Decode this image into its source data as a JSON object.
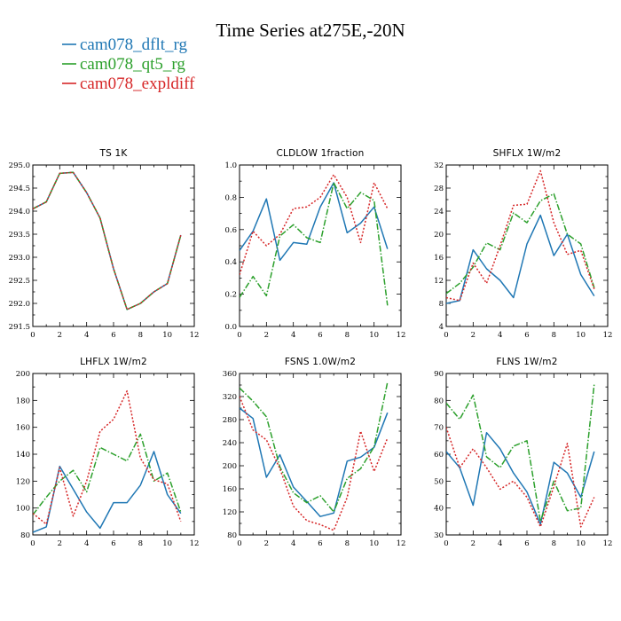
{
  "title": "Time Series at275E,-20N",
  "legend": [
    {
      "label": "cam078_dflt_rg",
      "color": "#1f77b4",
      "dash": "solid"
    },
    {
      "label": "cam078_qt5_rg",
      "color": "#2ca02c",
      "dash": "dashdot"
    },
    {
      "label": "cam078_expldiff",
      "color": "#d62728",
      "dash": "dotted"
    }
  ],
  "chart_data": [
    {
      "type": "line",
      "title": "TS   1K",
      "xlim": [
        0,
        12
      ],
      "xticks": [
        0,
        2,
        4,
        6,
        8,
        10,
        12
      ],
      "ylim": [
        291.5,
        295.0
      ],
      "yticks": [
        291.5,
        292.0,
        292.5,
        293.0,
        293.5,
        294.0,
        294.5,
        295.0
      ],
      "ytick_labels": [
        "291.5",
        "292.0",
        "292.5",
        "293.0",
        "293.5",
        "294.0",
        "294.5",
        "295.0"
      ],
      "x": [
        0,
        1,
        2,
        3,
        4,
        5,
        6,
        7,
        8,
        9,
        10,
        11
      ],
      "series": [
        {
          "name": "cam078_dflt_rg",
          "values": [
            294.05,
            294.2,
            294.82,
            294.84,
            294.4,
            293.85,
            292.75,
            291.87,
            292.0,
            292.25,
            292.43,
            293.48
          ]
        },
        {
          "name": "cam078_qt5_rg",
          "values": [
            294.05,
            294.2,
            294.82,
            294.84,
            294.4,
            293.85,
            292.75,
            291.87,
            292.0,
            292.25,
            292.43,
            293.48
          ]
        },
        {
          "name": "cam078_expldiff",
          "values": [
            294.05,
            294.2,
            294.82,
            294.84,
            294.4,
            293.85,
            292.75,
            291.87,
            292.0,
            292.25,
            292.43,
            293.48
          ]
        }
      ]
    },
    {
      "type": "line",
      "title": "CLDLOW   1fraction",
      "xlim": [
        0,
        12
      ],
      "xticks": [
        0,
        2,
        4,
        6,
        8,
        10,
        12
      ],
      "ylim": [
        0.0,
        1.0
      ],
      "yticks": [
        0.0,
        0.2,
        0.4,
        0.6,
        0.8,
        1.0
      ],
      "ytick_labels": [
        "0.0",
        "0.2",
        "0.4",
        "0.6",
        "0.8",
        "1.0"
      ],
      "x": [
        0,
        1,
        2,
        3,
        4,
        5,
        6,
        7,
        8,
        9,
        10,
        11
      ],
      "series": [
        {
          "name": "cam078_dflt_rg",
          "values": [
            0.47,
            0.59,
            0.79,
            0.41,
            0.52,
            0.51,
            0.74,
            0.89,
            0.58,
            0.64,
            0.74,
            0.48
          ]
        },
        {
          "name": "cam078_qt5_rg",
          "values": [
            0.18,
            0.31,
            0.19,
            0.56,
            0.63,
            0.55,
            0.52,
            0.89,
            0.73,
            0.83,
            0.78,
            0.13
          ]
        },
        {
          "name": "cam078_expldiff",
          "values": [
            0.32,
            0.59,
            0.5,
            0.57,
            0.73,
            0.74,
            0.8,
            0.94,
            0.8,
            0.52,
            0.89,
            0.73
          ]
        }
      ]
    },
    {
      "type": "line",
      "title": "SHFLX   1W/m2",
      "xlim": [
        0,
        12
      ],
      "xticks": [
        0,
        2,
        4,
        6,
        8,
        10,
        12
      ],
      "ylim": [
        4,
        32
      ],
      "yticks": [
        4,
        8,
        12,
        16,
        20,
        24,
        28,
        32
      ],
      "ytick_labels": [
        "4",
        "8",
        "12",
        "16",
        "20",
        "24",
        "28",
        "32"
      ],
      "x": [
        0,
        1,
        2,
        3,
        4,
        5,
        6,
        7,
        8,
        9,
        10,
        11
      ],
      "series": [
        {
          "name": "cam078_dflt_rg",
          "values": [
            8.0,
            8.5,
            17.3,
            14.0,
            12.0,
            9.0,
            18.3,
            23.3,
            16.3,
            20.0,
            13.0,
            9.3
          ]
        },
        {
          "name": "cam078_qt5_rg",
          "values": [
            9.7,
            11.5,
            14.3,
            18.5,
            17.3,
            23.7,
            22.0,
            25.8,
            27.0,
            20.0,
            18.3,
            10.7
          ]
        },
        {
          "name": "cam078_expldiff",
          "values": [
            9.0,
            8.5,
            15.0,
            11.5,
            18.0,
            25.0,
            25.2,
            31.0,
            22.0,
            16.5,
            17.2,
            10.5
          ]
        }
      ]
    },
    {
      "type": "line",
      "title": "LHFLX   1W/m2",
      "xlim": [
        0,
        12
      ],
      "xticks": [
        0,
        2,
        4,
        6,
        8,
        10,
        12
      ],
      "ylim": [
        80,
        200
      ],
      "yticks": [
        80,
        100,
        120,
        140,
        160,
        180,
        200
      ],
      "ytick_labels": [
        "80",
        "100",
        "120",
        "140",
        "160",
        "180",
        "200"
      ],
      "x": [
        0,
        1,
        2,
        3,
        4,
        5,
        6,
        7,
        8,
        9,
        10,
        11
      ],
      "series": [
        {
          "name": "cam078_dflt_rg",
          "values": [
            82,
            86,
            131,
            114,
            97,
            85,
            104,
            104,
            117,
            142,
            110,
            96
          ]
        },
        {
          "name": "cam078_qt5_rg",
          "values": [
            95,
            108,
            120,
            128,
            112,
            145,
            140,
            135,
            155,
            120,
            126,
            97
          ]
        },
        {
          "name": "cam078_expldiff",
          "values": [
            96,
            88,
            130,
            94,
            120,
            157,
            166,
            187,
            137,
            121,
            118,
            90
          ]
        }
      ]
    },
    {
      "type": "line",
      "title": "FSNS   1.0W/m2",
      "xlim": [
        0,
        12
      ],
      "xticks": [
        0,
        2,
        4,
        6,
        8,
        10,
        12
      ],
      "ylim": [
        80,
        360
      ],
      "yticks": [
        80,
        120,
        160,
        200,
        240,
        280,
        320,
        360
      ],
      "ytick_labels": [
        "80",
        "120",
        "160",
        "200",
        "240",
        "280",
        "320",
        "360"
      ],
      "x": [
        0,
        1,
        2,
        3,
        4,
        5,
        6,
        7,
        8,
        9,
        10,
        11
      ],
      "series": [
        {
          "name": "cam078_dflt_rg",
          "values": [
            300,
            282,
            180,
            219,
            163,
            138,
            112,
            118,
            208,
            215,
            232,
            292
          ]
        },
        {
          "name": "cam078_qt5_rg",
          "values": [
            335,
            312,
            285,
            198,
            153,
            136,
            148,
            120,
            178,
            195,
            233,
            345
          ]
        },
        {
          "name": "cam078_expldiff",
          "values": [
            320,
            262,
            245,
            195,
            130,
            105,
            98,
            88,
            145,
            260,
            190,
            248
          ]
        }
      ]
    },
    {
      "type": "line",
      "title": "FLNS   1W/m2",
      "xlim": [
        0,
        12
      ],
      "xticks": [
        0,
        2,
        4,
        6,
        8,
        10,
        12
      ],
      "ylim": [
        30,
        90
      ],
      "yticks": [
        30,
        40,
        50,
        60,
        70,
        80,
        90
      ],
      "ytick_labels": [
        "30",
        "40",
        "50",
        "60",
        "70",
        "80",
        "90"
      ],
      "x": [
        0,
        1,
        2,
        3,
        4,
        5,
        6,
        7,
        8,
        9,
        10,
        11
      ],
      "series": [
        {
          "name": "cam078_dflt_rg",
          "values": [
            61,
            55,
            41,
            68,
            62,
            53,
            46,
            34,
            57,
            53,
            44,
            61
          ]
        },
        {
          "name": "cam078_qt5_rg",
          "values": [
            79,
            73,
            82,
            59,
            55,
            63,
            65,
            35,
            50,
            39,
            40,
            86
          ]
        },
        {
          "name": "cam078_expldiff",
          "values": [
            70,
            55,
            62,
            55,
            47,
            50,
            44,
            33,
            48,
            64,
            33,
            44
          ]
        }
      ]
    }
  ]
}
